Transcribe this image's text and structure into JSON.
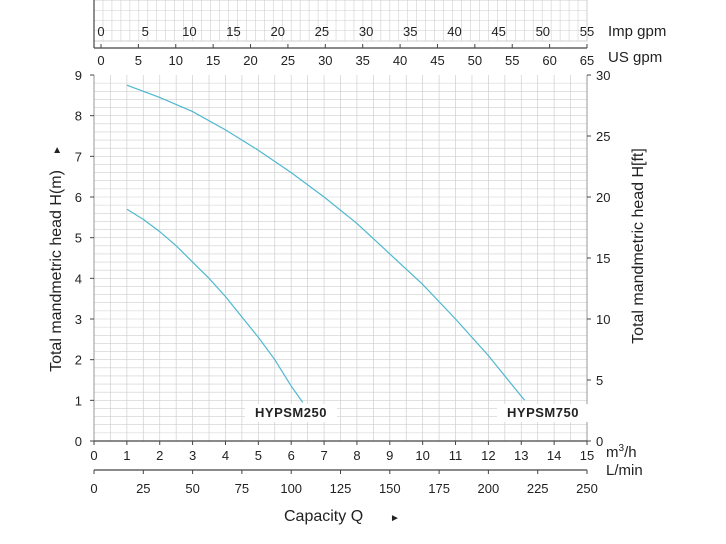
{
  "chart_data": {
    "type": "line",
    "title": "",
    "xlabel": "Capacity Q",
    "xlabel_arrow": "►",
    "ylabel": "Total mandmetric head H(m)",
    "ylabel_arrow": "►",
    "ylabel_right": "Total mandmetric head H[ft]",
    "xlim": [
      0,
      15
    ],
    "ylim": [
      0,
      9
    ],
    "grid": true,
    "primary_x_unit_num": "m",
    "primary_x_unit_sup": "3",
    "primary_x_unit_den": "/h",
    "lmin_unit": "L/min",
    "imp_unit": "Imp gpm",
    "us_unit": "US gpm",
    "x_ticks": [
      "0",
      "1",
      "2",
      "3",
      "4",
      "5",
      "6",
      "7",
      "8",
      "9",
      "10",
      "11",
      "12",
      "13",
      "14",
      "15"
    ],
    "y_ticks": [
      "0",
      "1",
      "2",
      "3",
      "4",
      "5",
      "6",
      "7",
      "8",
      "9"
    ],
    "ft_ticks": [
      "0",
      "5",
      "10",
      "15",
      "20",
      "25",
      "30"
    ],
    "lmin_ticks": [
      "0",
      "25",
      "50",
      "75",
      "100",
      "125",
      "150",
      "175",
      "200",
      "225",
      "250"
    ],
    "imp_ticks": [
      "0",
      "5",
      "10",
      "15",
      "20",
      "25",
      "30",
      "35",
      "40",
      "45",
      "50",
      "55"
    ],
    "us_ticks": [
      "0",
      "5",
      "10",
      "15",
      "20",
      "25",
      "30",
      "35",
      "40",
      "45",
      "50",
      "55",
      "60",
      "65"
    ],
    "series": [
      {
        "name": "HYPSM250",
        "x": [
          1.0,
          1.5,
          2.0,
          2.5,
          3.0,
          3.5,
          4.0,
          4.5,
          5.0,
          5.5,
          6.0,
          6.35
        ],
        "y": [
          5.7,
          5.45,
          5.15,
          4.8,
          4.4,
          4.0,
          3.55,
          3.05,
          2.55,
          2.0,
          1.35,
          0.95
        ]
      },
      {
        "name": "HYPSM750",
        "x": [
          1.0,
          2.0,
          3.0,
          4.0,
          5.0,
          6.0,
          7.0,
          8.0,
          9.0,
          10.0,
          11.0,
          12.0,
          12.7,
          13.1
        ],
        "y": [
          8.75,
          8.45,
          8.1,
          7.65,
          7.15,
          6.6,
          6.0,
          5.35,
          4.6,
          3.85,
          3.0,
          2.1,
          1.4,
          1.0
        ]
      }
    ],
    "curve_labels": [
      "HYPSM250",
      "HYPSM750"
    ],
    "curve_color": "#4fb8cf",
    "grid_color": "#cfcfcf"
  }
}
